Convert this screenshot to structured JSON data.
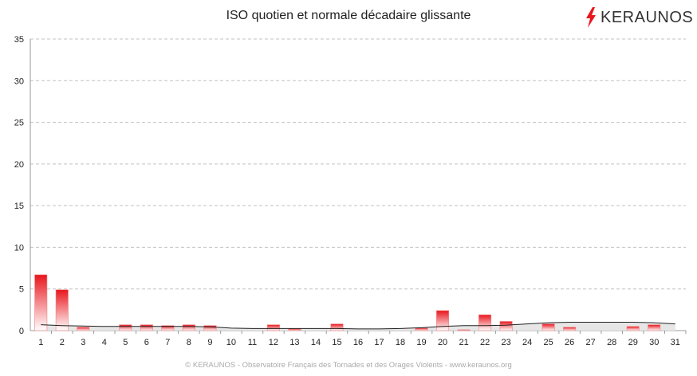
{
  "chart_data": {
    "type": "bar",
    "title": "ISO quotien et normale décadaire glissante",
    "categories": [
      "1",
      "2",
      "3",
      "4",
      "5",
      "6",
      "7",
      "8",
      "9",
      "10",
      "11",
      "12",
      "13",
      "14",
      "15",
      "16",
      "17",
      "18",
      "19",
      "20",
      "21",
      "22",
      "23",
      "24",
      "25",
      "26",
      "27",
      "28",
      "29",
      "30",
      "31"
    ],
    "series": [
      {
        "values": [
          6.7,
          4.9,
          0.4,
          0,
          0.7,
          0.7,
          0.6,
          0.7,
          0.6,
          0,
          0,
          0.7,
          0.2,
          0,
          0.8,
          0,
          0,
          0,
          0.3,
          2.4,
          0.1,
          1.9,
          1.1,
          0,
          0.8,
          0.4,
          0,
          0,
          0.5,
          0.7,
          0
        ]
      },
      {
        "type": "area",
        "values": [
          0.7,
          0.6,
          0.55,
          0.5,
          0.5,
          0.5,
          0.5,
          0.5,
          0.45,
          0.3,
          0.25,
          0.25,
          0.25,
          0.25,
          0.25,
          0.2,
          0.2,
          0.25,
          0.35,
          0.5,
          0.6,
          0.6,
          0.65,
          0.8,
          0.95,
          1.0,
          1.0,
          1.0,
          1.0,
          0.95,
          0.8
        ]
      }
    ],
    "ylim": [
      0,
      35
    ],
    "yticks": [
      0,
      5,
      10,
      15,
      20,
      25,
      30,
      35
    ],
    "grid": true,
    "colors": {
      "bar_top": "#e8161d",
      "bar_bottom": "#ffffff",
      "area_fill": "#e6e6e6",
      "line": "#222222",
      "grid": "#c0c0c0",
      "axis": "#999999"
    }
  },
  "brand": {
    "logo_text": "KERAUNOS",
    "logo_color": "#e8161d",
    "logo_icon": "lightning-bolt-icon"
  },
  "footer": "© KERAUNOS - Observatoire Français des Tornades et des Orages Violents - www.keraunos.org"
}
